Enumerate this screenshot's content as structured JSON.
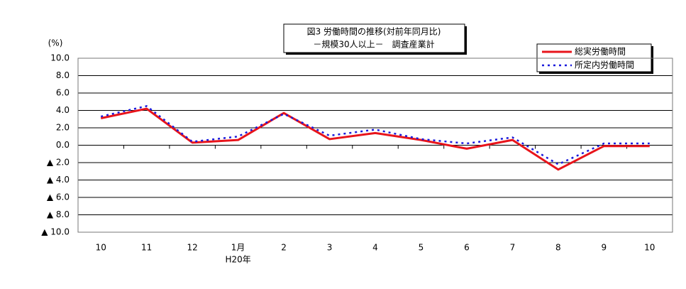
{
  "chart_data": {
    "type": "line",
    "title": "図3  労働時間の推移(対前年同月比)",
    "subtitle": "－規模30人以上－　調査産業計",
    "y_label": "(%)",
    "categories": [
      "10",
      "11",
      "12",
      "1月",
      "2",
      "3",
      "4",
      "5",
      "6",
      "7",
      "8",
      "9",
      "10"
    ],
    "category_note": "H20年",
    "series": [
      {
        "name": "総実労働時間",
        "color": "#e8141b",
        "line_style": "solid",
        "values": [
          3.1,
          4.2,
          0.3,
          0.6,
          3.7,
          0.7,
          1.4,
          0.6,
          -0.4,
          0.6,
          -2.8,
          -0.1,
          -0.1
        ]
      },
      {
        "name": "所定内労働時間",
        "color": "#1a1adb",
        "line_style": "dotted",
        "values": [
          3.3,
          4.5,
          0.4,
          1.0,
          3.6,
          1.1,
          1.8,
          0.7,
          0.2,
          0.9,
          -2.2,
          0.2,
          0.2
        ]
      }
    ],
    "ylim": [
      -10,
      10
    ],
    "yticks": [
      {
        "value": 10,
        "label": "10.0"
      },
      {
        "value": 8,
        "label": "8.0"
      },
      {
        "value": 6,
        "label": "6.0"
      },
      {
        "value": 4,
        "label": "4.0"
      },
      {
        "value": 2,
        "label": "2.0"
      },
      {
        "value": 0,
        "label": "0.0"
      },
      {
        "value": -2,
        "label": "▲ 2.0"
      },
      {
        "value": -4,
        "label": "▲ 4.0"
      },
      {
        "value": -6,
        "label": "▲ 6.0"
      },
      {
        "value": -8,
        "label": "▲ 8.0"
      },
      {
        "value": -10,
        "label": "▲ 10.0"
      }
    ],
    "grid": true,
    "legend": "top-right"
  }
}
